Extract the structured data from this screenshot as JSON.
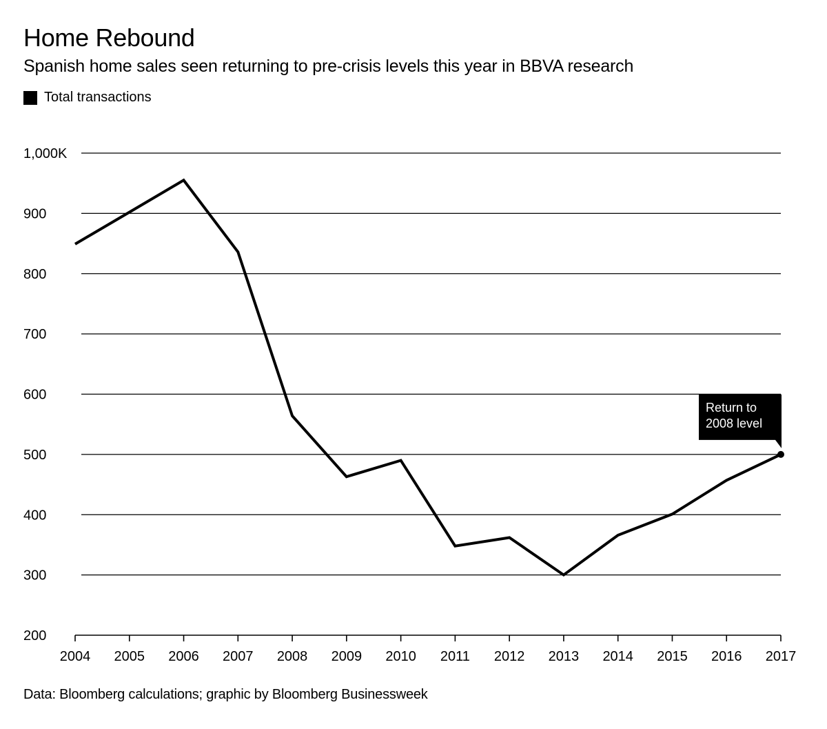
{
  "header": {
    "title": "Home Rebound",
    "subtitle": "Spanish home sales seen returning to pre-crisis levels this year in BBVA research"
  },
  "legend": {
    "label": "Total transactions",
    "color": "#000000"
  },
  "footer": {
    "source": "Data: Bloomberg calculations; graphic by Bloomberg Businessweek"
  },
  "chart_data": {
    "type": "line",
    "title": "Home Rebound",
    "subtitle": "Spanish home sales seen returning to pre-crisis levels this year in BBVA research",
    "xlabel": "",
    "ylabel": "",
    "x": [
      "2004",
      "2005",
      "2006",
      "2007",
      "2008",
      "2009",
      "2010",
      "2011",
      "2012",
      "2013",
      "2014",
      "2015",
      "2016",
      "2017"
    ],
    "series": [
      {
        "name": "Total transactions",
        "color": "#000000",
        "values": [
          849,
          902,
          955,
          836,
          564,
          463,
          490,
          348,
          362,
          300,
          366,
          401,
          457,
          500
        ]
      }
    ],
    "ylim": [
      200,
      1000
    ],
    "yticks": [
      200,
      300,
      400,
      500,
      600,
      700,
      800,
      900,
      1000
    ],
    "ytick_labels": [
      "200",
      "300",
      "400",
      "500",
      "600",
      "700",
      "800",
      "900",
      "1,000K"
    ],
    "grid": true,
    "legend_position": "top-left",
    "annotations": [
      {
        "x": "2017",
        "y": 500,
        "lines": [
          "Return to",
          "2008 level"
        ]
      }
    ]
  }
}
